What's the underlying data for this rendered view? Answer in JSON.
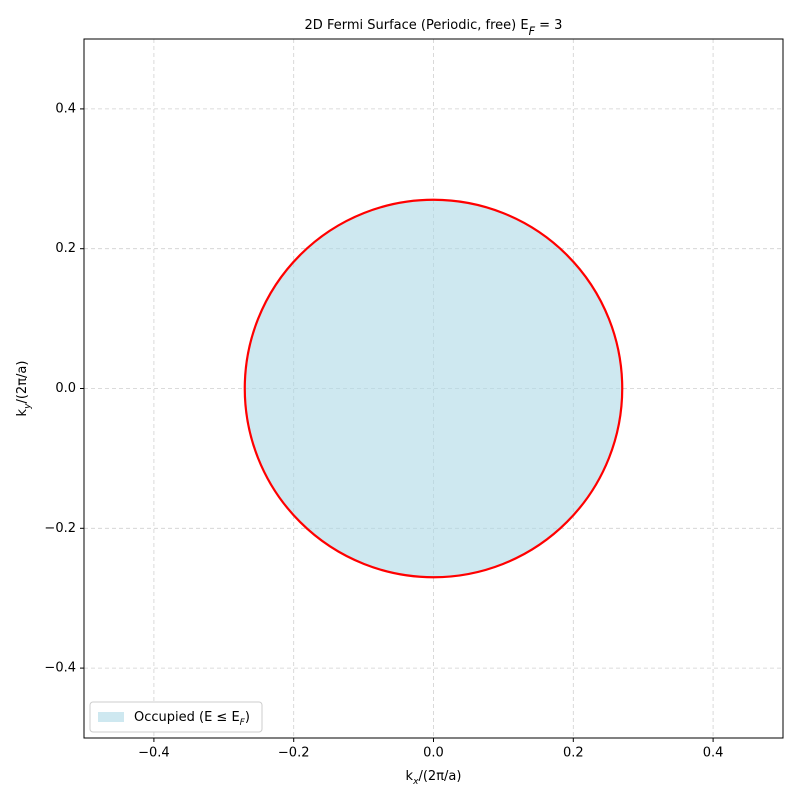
{
  "chart_data": {
    "type": "circle",
    "title": [
      "2D Fermi Surface (Periodic, free)   E",
      "F",
      " = 3"
    ],
    "xlabel": [
      "k",
      "x",
      "/(2π/a)"
    ],
    "ylabel": [
      "k",
      "y",
      "/(2π/a)"
    ],
    "shapes": [
      {
        "name": [
          "Occupied (E ≤ E",
          "F",
          ")"
        ],
        "center": [
          0,
          0
        ],
        "radius": 0.27,
        "fill": "#add8e6",
        "edge": "#ff0000"
      }
    ],
    "xlim": [
      -0.5,
      0.5
    ],
    "ylim": [
      -0.5,
      0.5
    ],
    "xticks": [
      {
        "value": -0.4,
        "label": "−0.4"
      },
      {
        "value": -0.2,
        "label": "−0.2"
      },
      {
        "value": 0,
        "label": "0.0"
      },
      0.2,
      0.4
    ],
    "yticks": [
      {
        "value": -0.4,
        "label": "−0.4"
      },
      {
        "value": -0.2,
        "label": "−0.2"
      },
      {
        "value": 0,
        "label": "0.0"
      },
      0.2,
      0.4
    ],
    "grid": true,
    "legend": "lower left"
  }
}
